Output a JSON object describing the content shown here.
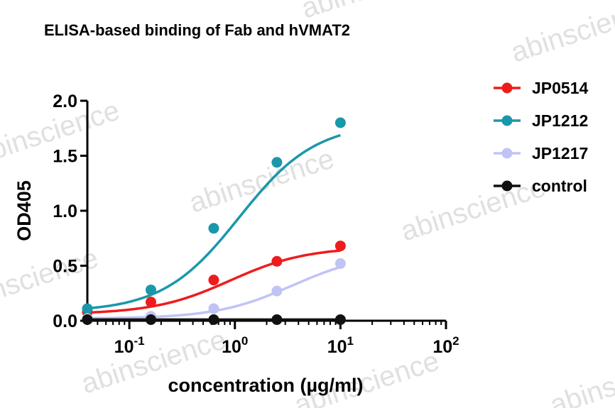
{
  "chart_data": {
    "type": "scatter",
    "title": "ELISA-based binding of Fab and hVMAT2",
    "xlabel": "concentration (µg/ml)",
    "ylabel": "OD405",
    "x_scale": "log",
    "xlim": [
      0.04,
      100
    ],
    "ylim": [
      0,
      2.0
    ],
    "x_ticks": [
      {
        "value": 0.1,
        "base": "10",
        "exp": "-1"
      },
      {
        "value": 1,
        "base": "10",
        "exp": "0"
      },
      {
        "value": 10,
        "base": "10",
        "exp": "1"
      },
      {
        "value": 100,
        "base": "10",
        "exp": "2"
      }
    ],
    "y_ticks": [
      {
        "value": 0.0,
        "label": "0.0"
      },
      {
        "value": 0.5,
        "label": "0.5"
      },
      {
        "value": 1.0,
        "label": "1.0"
      },
      {
        "value": 1.5,
        "label": "1.5"
      },
      {
        "value": 2.0,
        "label": "2.0"
      }
    ],
    "legend_position": "right",
    "series": [
      {
        "name": "JP0514",
        "color": "#ee1c1c",
        "x": [
          0.04,
          0.16,
          0.63,
          2.5,
          10
        ],
        "y": [
          0.08,
          0.17,
          0.37,
          0.54,
          0.68
        ],
        "fit": {
          "bottom": 0.06,
          "top": 0.67,
          "ec50": 0.9,
          "hill": 1.2
        }
      },
      {
        "name": "JP1212",
        "color": "#1b97aa",
        "x": [
          0.04,
          0.16,
          0.63,
          2.5,
          10
        ],
        "y": [
          0.11,
          0.28,
          0.84,
          1.44,
          1.8
        ],
        "fit": {
          "bottom": 0.08,
          "top": 1.8,
          "ec50": 1.1,
          "hill": 1.2
        }
      },
      {
        "name": "JP1217",
        "color": "#c0c4f4",
        "x": [
          0.04,
          0.16,
          0.63,
          2.5,
          10
        ],
        "y": [
          0.02,
          0.04,
          0.11,
          0.27,
          0.52
        ],
        "fit": {
          "bottom": 0.02,
          "top": 0.62,
          "ec50": 3.5,
          "hill": 1.2
        }
      },
      {
        "name": "control",
        "color": "#111111",
        "x": [
          0.04,
          0.16,
          0.63,
          2.5,
          10
        ],
        "y": [
          0.01,
          0.01,
          0.01,
          0.01,
          0.01
        ],
        "fit": {
          "bottom": 0.01,
          "top": 0.01,
          "ec50": 1,
          "hill": 1
        }
      }
    ]
  },
  "watermark": {
    "text": "abinscience",
    "color": "#c8c8c8"
  }
}
